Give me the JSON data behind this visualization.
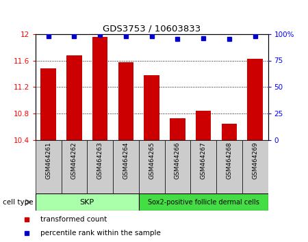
{
  "title": "GDS3753 / 10603833",
  "samples": [
    "GSM464261",
    "GSM464262",
    "GSM464263",
    "GSM464264",
    "GSM464265",
    "GSM464266",
    "GSM464267",
    "GSM464268",
    "GSM464269"
  ],
  "red_values": [
    11.48,
    11.68,
    11.95,
    11.57,
    11.38,
    10.73,
    10.84,
    10.65,
    11.63
  ],
  "blue_values": [
    98,
    98,
    99,
    98,
    98,
    95,
    96,
    95,
    98
  ],
  "ylim_left": [
    10.4,
    12.0
  ],
  "ylim_right": [
    0,
    100
  ],
  "yticks_left": [
    10.4,
    10.8,
    11.2,
    11.6,
    12.0
  ],
  "ytick_labels_left": [
    "10.4",
    "10.8",
    "11.2",
    "11.6",
    "12"
  ],
  "yticks_right": [
    0,
    25,
    50,
    75,
    100
  ],
  "ytick_labels_right": [
    "0",
    "25",
    "50",
    "75",
    "100%"
  ],
  "skp_color": "#aaffaa",
  "sox2_color": "#44dd44",
  "skp_label": "SKP",
  "skp_samples": 4,
  "sox2_label": "Sox2-positive follicle dermal cells",
  "sox2_samples": 5,
  "cell_type_label": "cell type",
  "legend_red": "transformed count",
  "legend_blue": "percentile rank within the sample",
  "bar_color": "#cc0000",
  "dot_color": "#0000cc",
  "xlabel_area_color": "#cccccc"
}
